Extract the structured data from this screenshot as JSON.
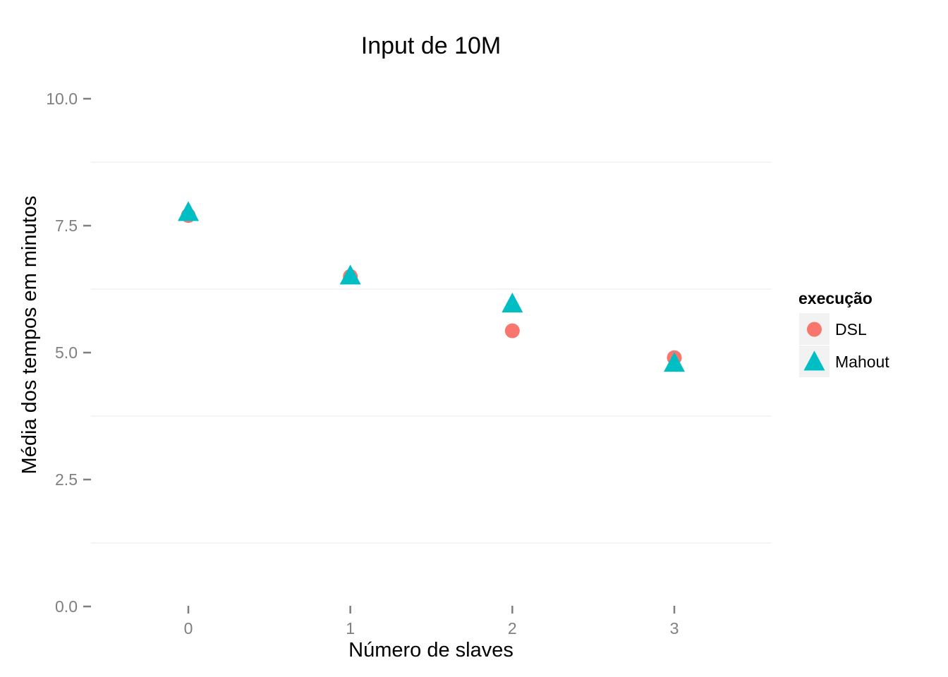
{
  "chart_data": {
    "type": "scatter",
    "title": "Input de 10M",
    "xlabel": "Número de slaves",
    "ylabel": "Média dos tempos em minutos",
    "xlim": [
      -0.5,
      3.6
    ],
    "ylim": [
      0,
      10
    ],
    "x_ticks": [
      {
        "value": 0,
        "label": "0"
      },
      {
        "value": 1,
        "label": "1"
      },
      {
        "value": 2,
        "label": "2"
      },
      {
        "value": 3,
        "label": "3"
      }
    ],
    "y_ticks": [
      {
        "value": 0,
        "label": "0.0"
      },
      {
        "value": 2.5,
        "label": "2.5"
      },
      {
        "value": 5,
        "label": "5.0"
      },
      {
        "value": 7.5,
        "label": "7.5"
      },
      {
        "value": 10,
        "label": "10.0"
      }
    ],
    "grid": true,
    "legend": {
      "title": "execução",
      "position": "right"
    },
    "series": [
      {
        "name": "DSL",
        "shape": "circle",
        "color": "#F8766D",
        "x": [
          0,
          1,
          2,
          3
        ],
        "y": [
          7.7,
          6.5,
          5.43,
          4.9
        ]
      },
      {
        "name": "Mahout",
        "shape": "triangle",
        "color": "#00BFC4",
        "x": [
          0,
          1,
          2,
          3
        ],
        "y": [
          7.75,
          6.5,
          5.95,
          4.78
        ]
      }
    ]
  }
}
